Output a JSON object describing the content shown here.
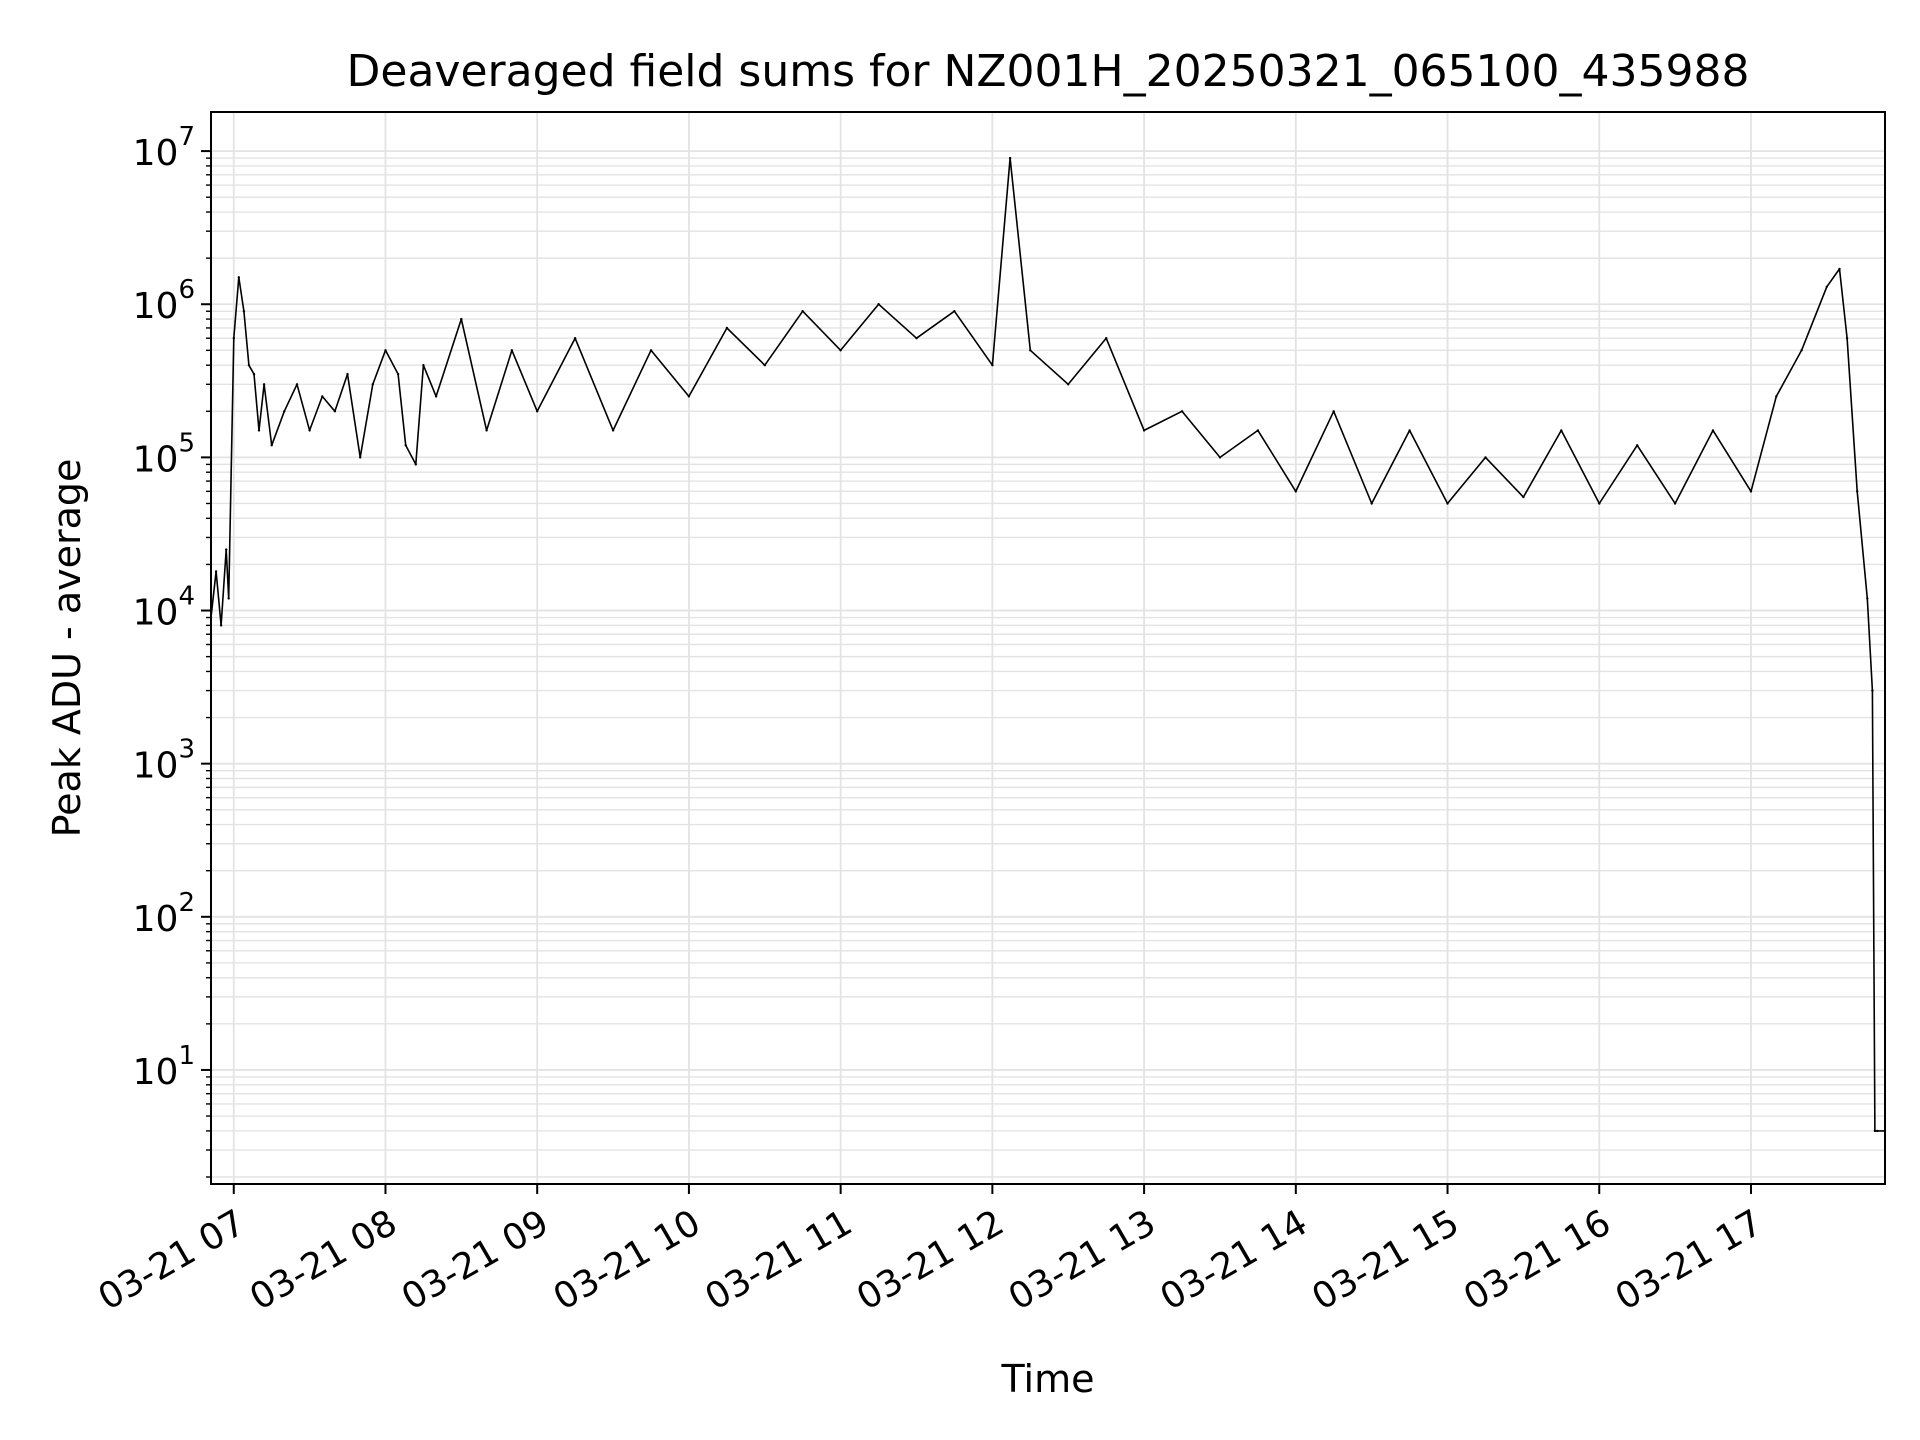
{
  "chart_data": {
    "type": "line",
    "title": "Deaveraged field sums for NZ001H_20250321_065100_435988",
    "xlabel": "Time",
    "ylabel": "Peak ADU - average",
    "yscale": "log",
    "ylim": [
      1.8,
      18000000
    ],
    "xlim": [
      "2025-03-21 06:51",
      "2025-03-21 17:53"
    ],
    "grid": true,
    "line_color": "#000000",
    "grid_color": "#e3e3e3",
    "x_ticks": [
      {
        "t": "2025-03-21 07:00",
        "label": "03-21 07"
      },
      {
        "t": "2025-03-21 08:00",
        "label": "03-21 08"
      },
      {
        "t": "2025-03-21 09:00",
        "label": "03-21 09"
      },
      {
        "t": "2025-03-21 10:00",
        "label": "03-21 10"
      },
      {
        "t": "2025-03-21 11:00",
        "label": "03-21 11"
      },
      {
        "t": "2025-03-21 12:00",
        "label": "03-21 12"
      },
      {
        "t": "2025-03-21 13:00",
        "label": "03-21 13"
      },
      {
        "t": "2025-03-21 14:00",
        "label": "03-21 14"
      },
      {
        "t": "2025-03-21 15:00",
        "label": "03-21 15"
      },
      {
        "t": "2025-03-21 16:00",
        "label": "03-21 16"
      },
      {
        "t": "2025-03-21 17:00",
        "label": "03-21 17"
      }
    ],
    "y_ticks": [
      {
        "value": 10,
        "base": "10",
        "exp": "1"
      },
      {
        "value": 100,
        "base": "10",
        "exp": "2"
      },
      {
        "value": 1000,
        "base": "10",
        "exp": "3"
      },
      {
        "value": 10000,
        "base": "10",
        "exp": "4"
      },
      {
        "value": 100000,
        "base": "10",
        "exp": "5"
      },
      {
        "value": 1000000,
        "base": "10",
        "exp": "6"
      },
      {
        "value": 10000000,
        "base": "10",
        "exp": "7"
      }
    ],
    "series": [
      {
        "x": [
          "2025-03-21 06:51",
          "2025-03-21 06:53",
          "2025-03-21 06:55",
          "2025-03-21 06:57",
          "2025-03-21 06:58",
          "2025-03-21 07:00",
          "2025-03-21 07:02",
          "2025-03-21 07:04",
          "2025-03-21 07:06",
          "2025-03-21 07:08",
          "2025-03-21 07:10",
          "2025-03-21 07:12",
          "2025-03-21 07:15",
          "2025-03-21 07:20",
          "2025-03-21 07:25",
          "2025-03-21 07:30",
          "2025-03-21 07:35",
          "2025-03-21 07:40",
          "2025-03-21 07:45",
          "2025-03-21 07:50",
          "2025-03-21 07:55",
          "2025-03-21 08:00",
          "2025-03-21 08:05",
          "2025-03-21 08:08",
          "2025-03-21 08:12",
          "2025-03-21 08:15",
          "2025-03-21 08:20",
          "2025-03-21 08:30",
          "2025-03-21 08:40",
          "2025-03-21 08:50",
          "2025-03-21 09:00",
          "2025-03-21 09:15",
          "2025-03-21 09:30",
          "2025-03-21 09:45",
          "2025-03-21 10:00",
          "2025-03-21 10:15",
          "2025-03-21 10:30",
          "2025-03-21 10:45",
          "2025-03-21 11:00",
          "2025-03-21 11:15",
          "2025-03-21 11:30",
          "2025-03-21 11:45",
          "2025-03-21 12:00",
          "2025-03-21 12:07",
          "2025-03-21 12:15",
          "2025-03-21 12:30",
          "2025-03-21 12:45",
          "2025-03-21 13:00",
          "2025-03-21 13:15",
          "2025-03-21 13:30",
          "2025-03-21 13:45",
          "2025-03-21 14:00",
          "2025-03-21 14:15",
          "2025-03-21 14:30",
          "2025-03-21 14:45",
          "2025-03-21 15:00",
          "2025-03-21 15:15",
          "2025-03-21 15:30",
          "2025-03-21 15:45",
          "2025-03-21 16:00",
          "2025-03-21 16:15",
          "2025-03-21 16:30",
          "2025-03-21 16:45",
          "2025-03-21 17:00",
          "2025-03-21 17:10",
          "2025-03-21 17:20",
          "2025-03-21 17:30",
          "2025-03-21 17:35",
          "2025-03-21 17:38",
          "2025-03-21 17:42",
          "2025-03-21 17:46",
          "2025-03-21 17:48",
          "2025-03-21 17:49",
          "2025-03-21 17:50",
          "2025-03-21 17:53"
        ],
        "y": [
          9000,
          18000,
          8000,
          25000,
          12000,
          600000,
          1500000,
          900000,
          400000,
          350000,
          150000,
          300000,
          120000,
          200000,
          300000,
          150000,
          250000,
          200000,
          350000,
          100000,
          300000,
          500000,
          350000,
          120000,
          90000,
          400000,
          250000,
          800000,
          150000,
          500000,
          200000,
          600000,
          150000,
          500000,
          250000,
          700000,
          400000,
          900000,
          500000,
          1000000,
          600000,
          900000,
          400000,
          9000000,
          500000,
          300000,
          600000,
          150000,
          200000,
          100000,
          150000,
          60000,
          200000,
          50000,
          150000,
          50000,
          100000,
          55000,
          150000,
          50000,
          120000,
          50000,
          150000,
          60000,
          250000,
          500000,
          1300000,
          1700000,
          600000,
          60000,
          12000,
          3000,
          4,
          4,
          4
        ]
      }
    ]
  }
}
